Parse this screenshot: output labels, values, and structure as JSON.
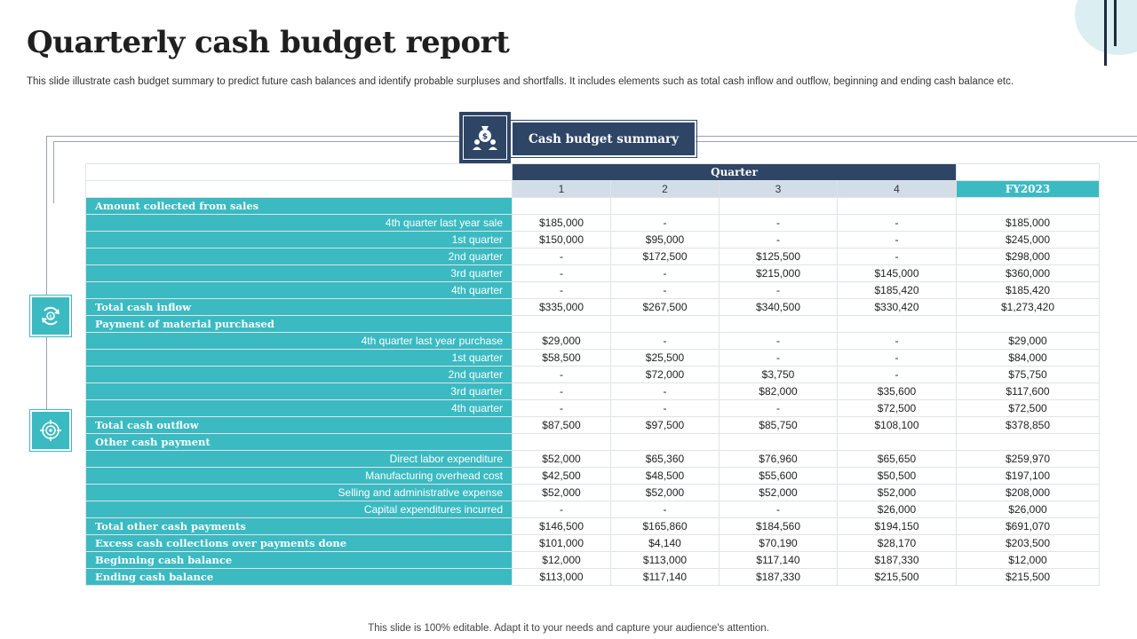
{
  "title": "Quarterly cash budget report",
  "subtitle": "This slide illustrate cash budget summary to predict future cash balances and identify probable surpluses and shortfalls. It includes elements such as total cash inflow and outflow, beginning and ending cash balance etc.",
  "summary_label": "Cash budget summary",
  "icons": {
    "summary": "money-bag-user-icon",
    "side_top": "cash-cycle-icon",
    "side_bottom": "target-icon"
  },
  "colors": {
    "navy": "#2e4566",
    "teal": "#3bbac2",
    "light_blue": "#d2dde8",
    "corner": "#dbeef2"
  },
  "table": {
    "quarter_header": "Quarter",
    "quarters": [
      "1",
      "2",
      "3",
      "4"
    ],
    "fy_header": "FY2023",
    "rows": [
      {
        "label": "Amount collected from sales",
        "type": "section",
        "values": [
          "",
          "",
          "",
          "",
          ""
        ]
      },
      {
        "label": "4th quarter last year sale",
        "type": "sub",
        "values": [
          "$185,000",
          "-",
          "-",
          "-",
          "$185,000"
        ]
      },
      {
        "label": "1st quarter",
        "type": "sub",
        "values": [
          "$150,000",
          "$95,000",
          "-",
          "-",
          "$245,000"
        ]
      },
      {
        "label": "2nd quarter",
        "type": "sub",
        "values": [
          "-",
          "$172,500",
          "$125,500",
          "-",
          "$298,000"
        ]
      },
      {
        "label": "3rd quarter",
        "type": "sub",
        "values": [
          "-",
          "-",
          "$215,000",
          "$145,000",
          "$360,000"
        ]
      },
      {
        "label": "4th quarter",
        "type": "sub",
        "values": [
          "-",
          "-",
          "-",
          "$185,420",
          "$185,420"
        ]
      },
      {
        "label": "Total cash inflow",
        "type": "section",
        "values": [
          "$335,000",
          "$267,500",
          "$340,500",
          "$330,420",
          "$1,273,420"
        ]
      },
      {
        "label": "Payment of material purchased",
        "type": "section",
        "values": [
          "",
          "",
          "",
          "",
          ""
        ]
      },
      {
        "label": "4th quarter last year purchase",
        "type": "sub",
        "values": [
          "$29,000",
          "-",
          "-",
          "-",
          "$29,000"
        ]
      },
      {
        "label": "1st quarter",
        "type": "sub",
        "values": [
          "$58,500",
          "$25,500",
          "-",
          "-",
          "$84,000"
        ]
      },
      {
        "label": "2nd quarter",
        "type": "sub",
        "values": [
          "-",
          "$72,000",
          "$3,750",
          "-",
          "$75,750"
        ]
      },
      {
        "label": "3rd quarter",
        "type": "sub",
        "values": [
          "-",
          "-",
          "$82,000",
          "$35,600",
          "$117,600"
        ]
      },
      {
        "label": "4th quarter",
        "type": "sub",
        "values": [
          "-",
          "-",
          "-",
          "$72,500",
          "$72,500"
        ]
      },
      {
        "label": "Total cash outflow",
        "type": "section",
        "values": [
          "$87,500",
          "$97,500",
          "$85,750",
          "$108,100",
          "$378,850"
        ]
      },
      {
        "label": "Other cash payment",
        "type": "section",
        "values": [
          "",
          "",
          "",
          "",
          ""
        ]
      },
      {
        "label": "Direct labor expenditure",
        "type": "sub",
        "values": [
          "$52,000",
          "$65,360",
          "$76,960",
          "$65,650",
          "$259,970"
        ]
      },
      {
        "label": "Manufacturing overhead cost",
        "type": "sub",
        "values": [
          "$42,500",
          "$48,500",
          "$55,600",
          "$50,500",
          "$197,100"
        ]
      },
      {
        "label": "Selling and administrative expense",
        "type": "sub",
        "values": [
          "$52,000",
          "$52,000",
          "$52,000",
          "$52,000",
          "$208,000"
        ]
      },
      {
        "label": "Capital expenditures incurred",
        "type": "sub",
        "values": [
          "-",
          "-",
          "-",
          "$26,000",
          "$26,000"
        ]
      },
      {
        "label": "Total other cash payments",
        "type": "section",
        "values": [
          "$146,500",
          "$165,860",
          "$184,560",
          "$194,150",
          "$691,070"
        ]
      },
      {
        "label": "Excess cash collections over payments done",
        "type": "section",
        "values": [
          "$101,000",
          "$4,140",
          "$70,190",
          "$28,170",
          "$203,500"
        ]
      },
      {
        "label": "Beginning cash balance",
        "type": "section",
        "values": [
          "$12,000",
          "$113,000",
          "$117,140",
          "$187,330",
          "$12,000"
        ]
      },
      {
        "label": "Ending cash balance",
        "type": "section",
        "values": [
          "$113,000",
          "$117,140",
          "$187,330",
          "$215,500",
          "$215,500"
        ]
      }
    ]
  },
  "footer": "This slide is 100% editable. Adapt it to your needs and capture your audience's attention."
}
